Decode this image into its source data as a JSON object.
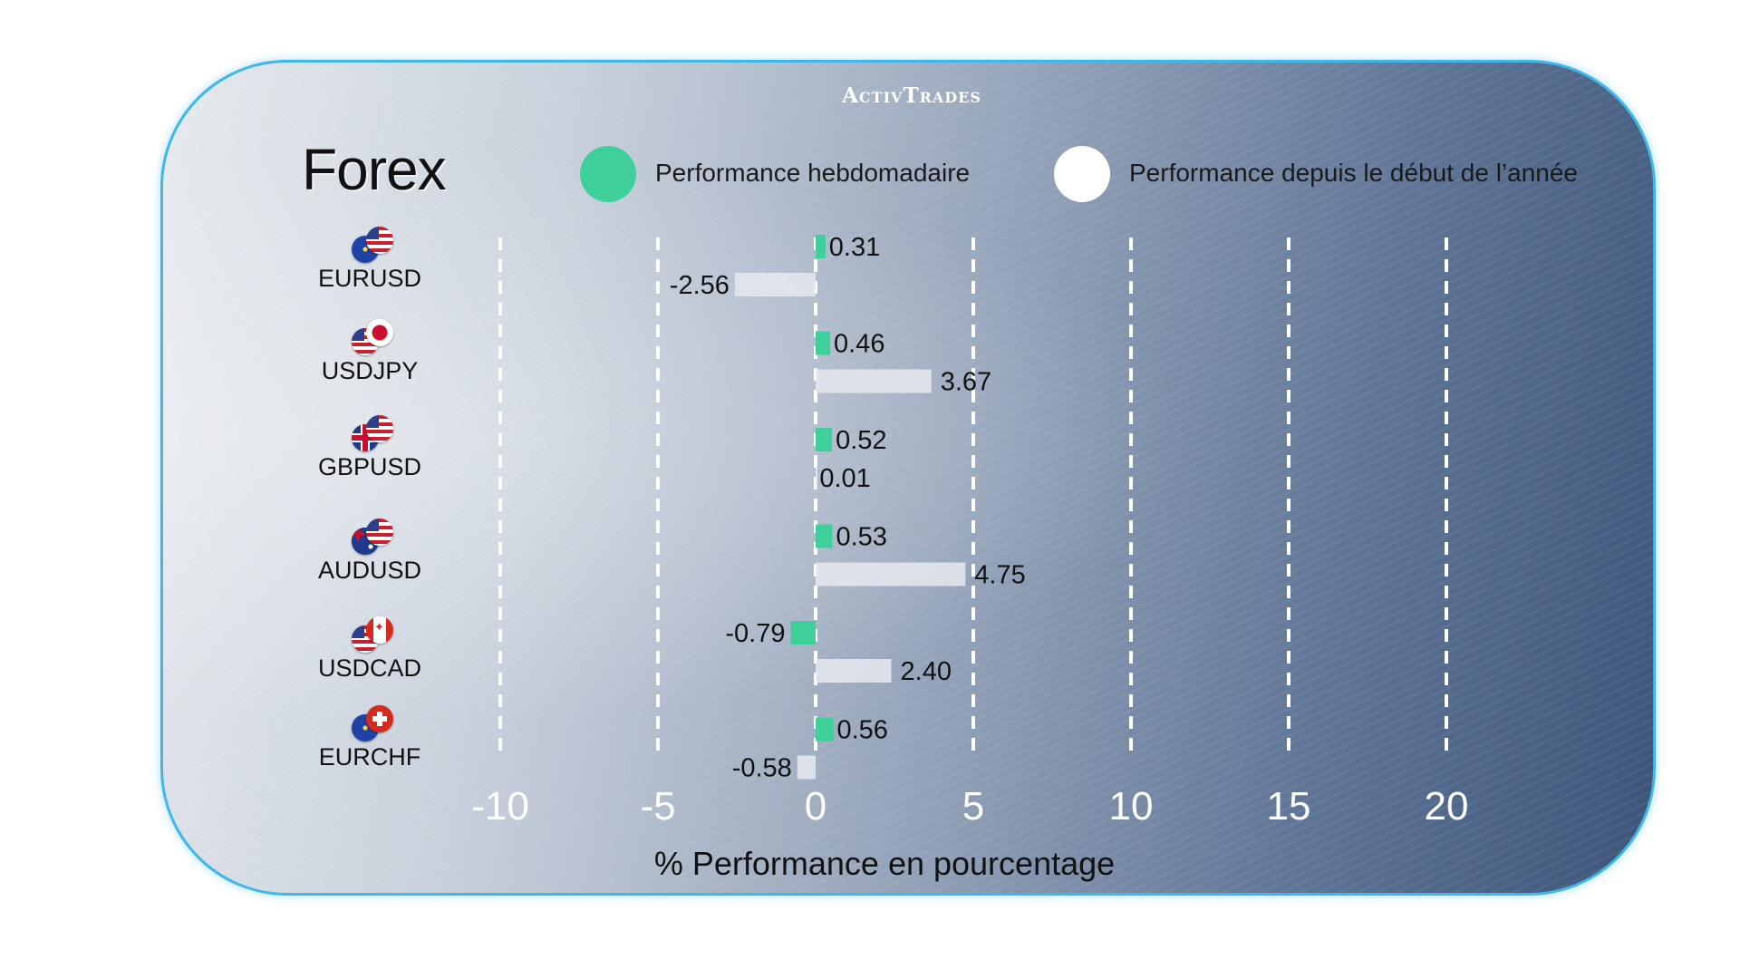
{
  "brand": "ActivTrades",
  "title": "Forex",
  "legend": [
    {
      "label": "Performance hebdomadaire",
      "color": "#3ecf9a"
    },
    {
      "label": "Performance depuis le début de l’année",
      "color": "#ffffff"
    }
  ],
  "pairs": [
    {
      "label": "EURUSD",
      "flags": [
        "eu-flag-icon",
        "us-flag-icon"
      ]
    },
    {
      "label": "USDJPY",
      "flags": [
        "us-flag-icon",
        "jp-flag-icon"
      ]
    },
    {
      "label": "GBPUSD",
      "flags": [
        "gb-flag-icon",
        "us-flag-icon"
      ]
    },
    {
      "label": "AUDUSD",
      "flags": [
        "au-flag-icon",
        "us-flag-icon"
      ]
    },
    {
      "label": "USDCAD",
      "flags": [
        "us-flag-icon",
        "ca-flag-icon"
      ]
    },
    {
      "label": "EURCHF",
      "flags": [
        "eu-flag-icon",
        "ch-flag-icon"
      ]
    }
  ],
  "chart_data": {
    "type": "bar",
    "orientation": "horizontal",
    "categories": [
      "EURUSD",
      "USDJPY",
      "GBPUSD",
      "AUDUSD",
      "USDCAD",
      "EURCHF"
    ],
    "series": [
      {
        "name": "Performance hebdomadaire",
        "values": [
          0.31,
          0.46,
          0.52,
          0.53,
          -0.79,
          0.56
        ],
        "labels": [
          "0.31",
          "0.46",
          "0.52",
          "0.53",
          "-0.79",
          "0.56"
        ],
        "color": "#3ecf9a"
      },
      {
        "name": "Performance depuis le début de l’année",
        "values": [
          -2.56,
          3.67,
          0.01,
          4.75,
          2.4,
          -0.58
        ],
        "labels": [
          "-2.56",
          "3.67",
          "0.01",
          "4.75",
          "2.40",
          "-0.58"
        ],
        "color": "#e6e9ee"
      }
    ],
    "xlabel": "% Performance en pourcentage",
    "xticks": [
      "-10",
      "-5",
      "0",
      "5",
      "10",
      "15",
      "20"
    ],
    "xlim": [
      -10,
      20
    ],
    "grid": true,
    "legend_position": "top"
  }
}
